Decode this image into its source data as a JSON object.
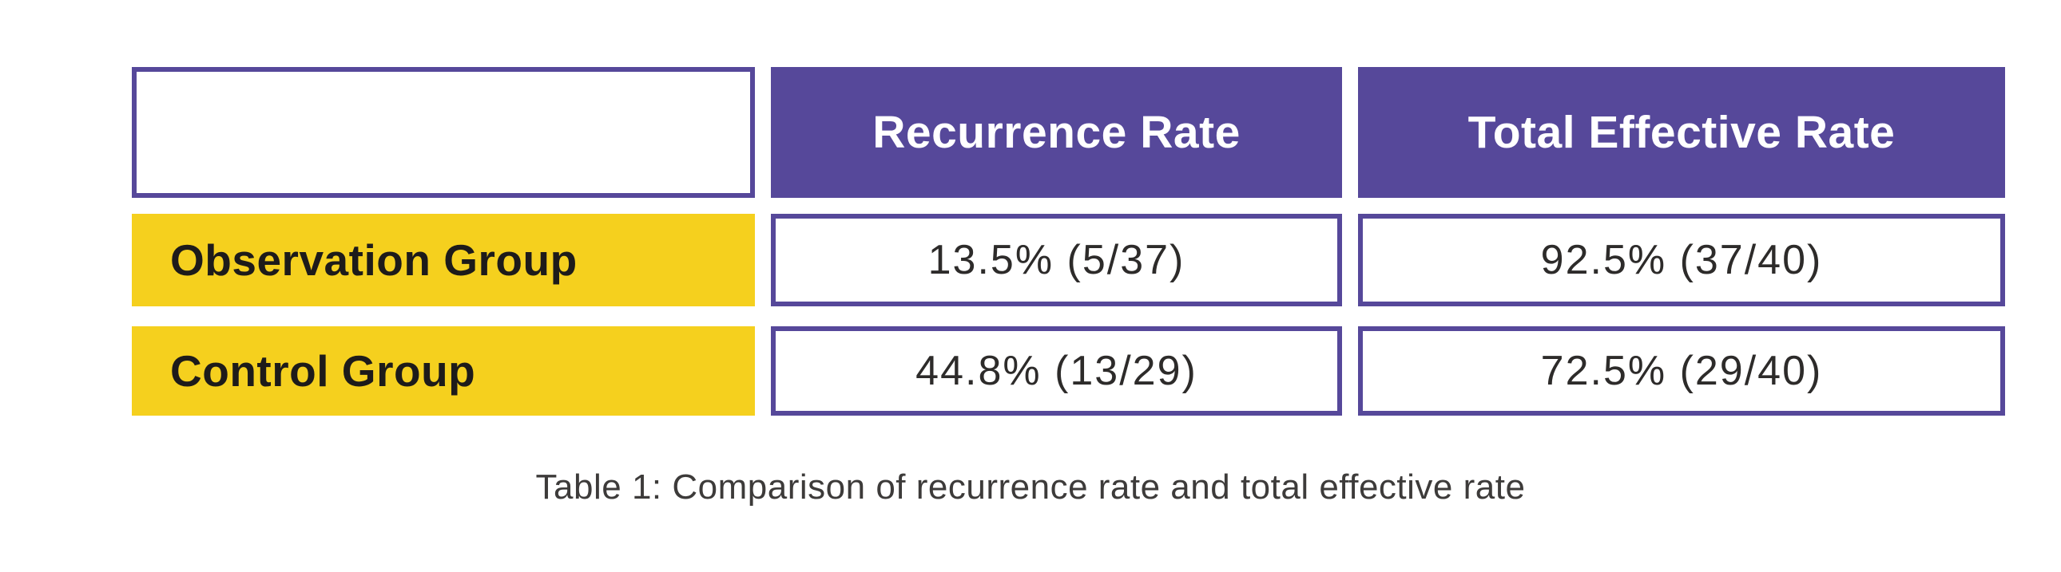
{
  "page": {
    "background": "#ffffff"
  },
  "colors": {
    "header-bg": "#56489a",
    "cell-border": "#56489a",
    "row-label-bg": "#f5d01e",
    "header-text": "#ffffff",
    "label-text": "#1d1b1a",
    "value-text": "#2d2b2a",
    "caption-text": "#3d3b3a"
  },
  "table": {
    "corner_label": "",
    "headers": [
      "Recurrence Rate",
      "Total Effective Rate"
    ],
    "rows": [
      {
        "label": "Observation Group",
        "values": [
          "13.5% (5/37)",
          "92.5% (37/40)"
        ]
      },
      {
        "label": "Control Group",
        "values": [
          "44.8% (13/29)",
          "72.5% (29/40)"
        ]
      }
    ]
  },
  "caption": "Table 1: Comparison of recurrence rate and total effective rate",
  "chart_data": {
    "type": "table",
    "title": "Table 1: Comparison of recurrence rate and total effective rate",
    "columns": [
      "",
      "Recurrence Rate",
      "Total Effective Rate"
    ],
    "rows": [
      [
        "Observation Group",
        "13.5% (5/37)",
        "92.5% (37/40)"
      ],
      [
        "Control Group",
        "44.8% (13/29)",
        "72.5% (29/40)"
      ]
    ],
    "series": [
      {
        "name": "Recurrence Rate %",
        "categories": [
          "Observation Group",
          "Control Group"
        ],
        "values": [
          13.5,
          44.8
        ],
        "fractions": [
          "5/37",
          "13/29"
        ]
      },
      {
        "name": "Total Effective Rate %",
        "categories": [
          "Observation Group",
          "Control Group"
        ],
        "values": [
          92.5,
          72.5
        ],
        "fractions": [
          "37/40",
          "29/40"
        ]
      }
    ]
  }
}
